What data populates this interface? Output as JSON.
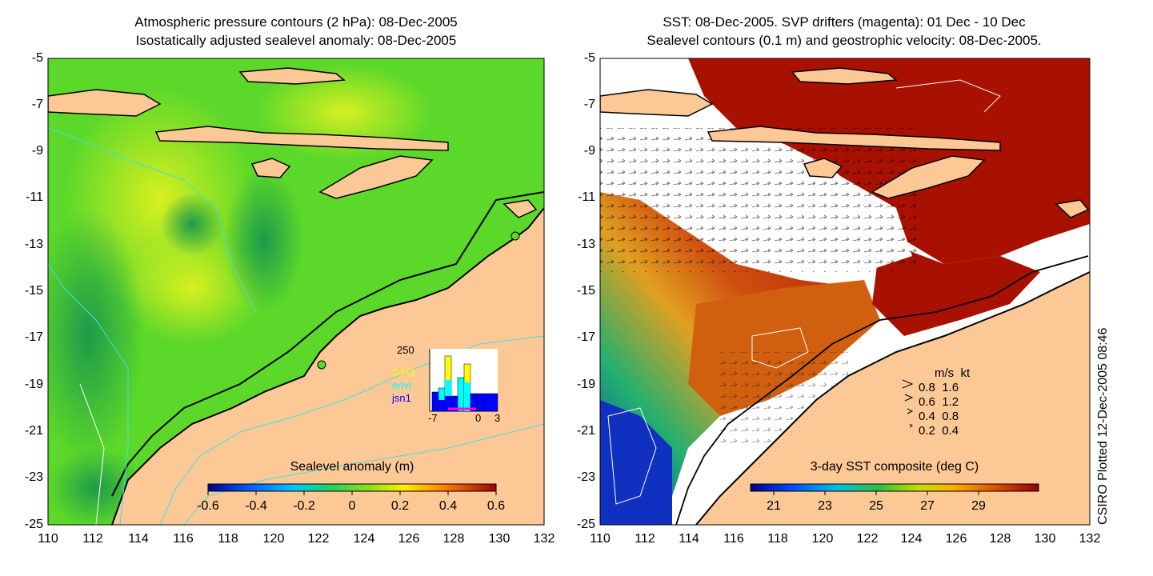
{
  "left_panel": {
    "title_line1": "Atmospheric pressure contours (2 hPa): 08-Dec-2005",
    "title_line2": "Isostatically adjusted sealevel anomaly: 08-Dec-2005",
    "colorbar": {
      "label": "Sealevel anomaly (m)",
      "ticks": [
        "-0.6",
        "-0.4",
        "-0.2",
        "0",
        "0.2",
        "0.4",
        "0.6"
      ]
    },
    "inset": {
      "ymax_label": "250",
      "x_ticks": [
        "-7",
        "0",
        "3"
      ],
      "satellites": [
        {
          "name": "GFO",
          "color": "#ffff00"
        },
        {
          "name": "envi",
          "color": "#00ffff"
        },
        {
          "name": "jsn1",
          "color": "#0000ff"
        }
      ]
    }
  },
  "right_panel": {
    "title_line1": "SST: 08-Dec-2005. SVP drifters (magenta): 01 Dec - 10 Dec",
    "title_line2": "Sealevel contours (0.1 m) and geostrophic velocity: 08-Dec-2005.",
    "colorbar": {
      "label": "3-day SST composite (deg C)",
      "ticks": [
        "21",
        "23",
        "25",
        "27",
        "29"
      ]
    },
    "velocity_legend": {
      "header_ms": "m/s",
      "header_kt": "kt",
      "rows": [
        {
          "ms": "0.8",
          "kt": "1.6"
        },
        {
          "ms": "0.6",
          "kt": "1.2"
        },
        {
          "ms": "0.4",
          "kt": "0.8"
        },
        {
          "ms": "0.2",
          "kt": "0.4"
        }
      ]
    }
  },
  "axes": {
    "y_ticks": [
      "-5",
      "-7",
      "-9",
      "-11",
      "-13",
      "-15",
      "-17",
      "-19",
      "-21",
      "-23",
      "-25"
    ],
    "x_ticks": [
      "110",
      "112",
      "114",
      "116",
      "118",
      "120",
      "122",
      "124",
      "126",
      "128",
      "130",
      "132"
    ]
  },
  "credit": "CSIRO Plotted 12-Dec-2005 08:46",
  "colors": {
    "land": "#fbc896",
    "ocean_green": "#5cd82a",
    "coast": "#000000",
    "isobath": "#40e0e0",
    "sst_hot": "#a81000"
  }
}
